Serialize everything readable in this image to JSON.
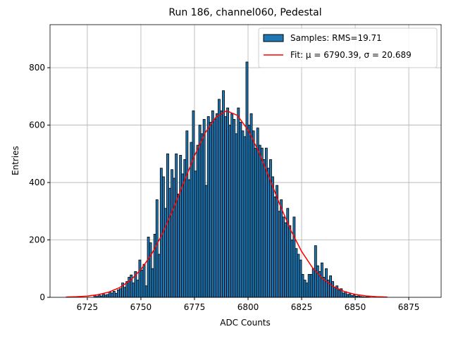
{
  "chart_data": {
    "type": "histogram",
    "title": "Run 186, channel060, Pedestal",
    "xlabel": "ADC Counts",
    "ylabel": "Entries",
    "xlim": [
      6707.6,
      6890.1
    ],
    "ylim": [
      0,
      950
    ],
    "xticks": [
      6725,
      6750,
      6775,
      6800,
      6825,
      6850,
      6875
    ],
    "yticks": [
      0,
      200,
      400,
      600,
      800
    ],
    "grid": true,
    "legend": "upper right",
    "series": [
      {
        "name": "Samples: RMS=19.71",
        "type": "histogram",
        "color": "#1f77b4",
        "edgecolor": "#000000",
        "bins": [
          6728,
          6729,
          6730,
          6731,
          6732,
          6733,
          6734,
          6735,
          6736,
          6737,
          6738,
          6739,
          6740,
          6741,
          6742,
          6743,
          6744,
          6745,
          6746,
          6747,
          6748,
          6749,
          6750,
          6751,
          6752,
          6753,
          6754,
          6755,
          6756,
          6757,
          6758,
          6759,
          6760,
          6761,
          6762,
          6763,
          6764,
          6765,
          6766,
          6767,
          6768,
          6769,
          6770,
          6771,
          6772,
          6773,
          6774,
          6775,
          6776,
          6777,
          6778,
          6779,
          6780,
          6781,
          6782,
          6783,
          6784,
          6785,
          6786,
          6787,
          6788,
          6789,
          6790,
          6791,
          6792,
          6793,
          6794,
          6795,
          6796,
          6797,
          6798,
          6799,
          6800,
          6801,
          6802,
          6803,
          6804,
          6805,
          6806,
          6807,
          6808,
          6809,
          6810,
          6811,
          6812,
          6813,
          6814,
          6815,
          6816,
          6817,
          6818,
          6819,
          6820,
          6821,
          6822,
          6823,
          6824,
          6825,
          6826,
          6827,
          6828,
          6829,
          6830,
          6831,
          6832,
          6833,
          6834,
          6835,
          6836,
          6837,
          6838,
          6839,
          6840,
          6841,
          6842,
          6843,
          6844,
          6845,
          6846,
          6847,
          6848,
          6849,
          6850,
          6851,
          6852,
          6853,
          6854,
          6855,
          6856,
          6857,
          6858
        ],
        "values": [
          7,
          3,
          9,
          5,
          12,
          8,
          10,
          18,
          15,
          21,
          14,
          26,
          30,
          50,
          35,
          55,
          70,
          78,
          50,
          90,
          60,
          130,
          95,
          115,
          40,
          210,
          190,
          100,
          220,
          340,
          150,
          450,
          420,
          310,
          500,
          380,
          445,
          415,
          500,
          360,
          495,
          430,
          480,
          580,
          410,
          540,
          650,
          440,
          530,
          600,
          570,
          620,
          390,
          630,
          610,
          650,
          620,
          640,
          690,
          650,
          720,
          630,
          660,
          600,
          640,
          620,
          570,
          660,
          610,
          580,
          560,
          820,
          600,
          640,
          580,
          520,
          590,
          530,
          520,
          480,
          520,
          450,
          480,
          420,
          350,
          390,
          300,
          340,
          280,
          260,
          310,
          250,
          200,
          280,
          170,
          150,
          130,
          80,
          60,
          50,
          80,
          80,
          100,
          180,
          110,
          90,
          120,
          70,
          100,
          60,
          75,
          55,
          35,
          40,
          25,
          30,
          15,
          20,
          10,
          12,
          6,
          8,
          4,
          5,
          3,
          2,
          1,
          2,
          1,
          0
        ]
      },
      {
        "name": "Fit: μ = 6790.39, σ = 20.689",
        "type": "line",
        "color": "#ff0000",
        "x": [
          6715,
          6720,
          6725,
          6730,
          6735,
          6740,
          6745,
          6750,
          6755,
          6760,
          6765,
          6770,
          6775,
          6780,
          6785,
          6790,
          6795,
          6800,
          6805,
          6810,
          6815,
          6820,
          6825,
          6830,
          6835,
          6840,
          6845,
          6850,
          6855,
          6860,
          6865
        ],
        "values": [
          0.85,
          2.0,
          4.4,
          9.2,
          18.1,
          33.5,
          58.5,
          96.6,
          150.5,
          221,
          306,
          400,
          493,
          573,
          628,
          650,
          634,
          583,
          507,
          415,
          320,
          233,
          160,
          104,
          63.6,
          36.7,
          20.0,
          10.2,
          5.0,
          2.3,
          1.0
        ]
      }
    ]
  }
}
